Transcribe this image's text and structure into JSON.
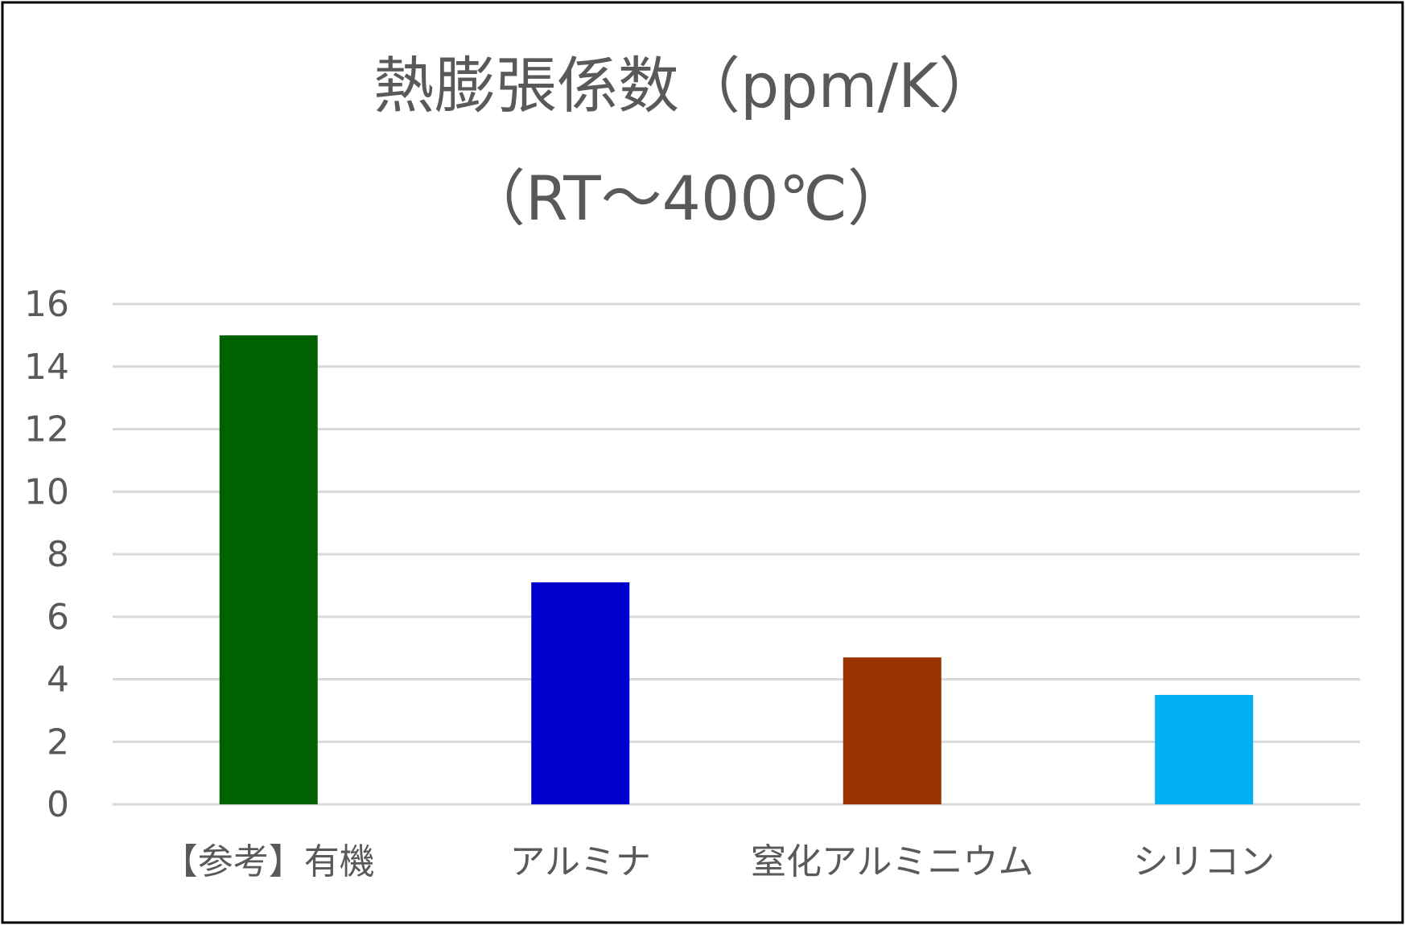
{
  "chart_data": {
    "type": "bar",
    "title": "熱膨張係数（ppm/K）",
    "subtitle": "（RT～400℃）",
    "xlabel": "",
    "ylabel": "",
    "categories": [
      "【参考】有機",
      "アルミナ",
      "窒化アルミニウム",
      "シリコン"
    ],
    "values": [
      15,
      7.1,
      4.7,
      3.5
    ],
    "colors": [
      "#006100",
      "#0000CC",
      "#993300",
      "#00B0F0"
    ],
    "ylim": [
      0,
      16
    ],
    "yticks": [
      "0",
      "2",
      "4",
      "6",
      "8",
      "10",
      "12",
      "14",
      "16"
    ],
    "grid": true,
    "legend": "none"
  }
}
